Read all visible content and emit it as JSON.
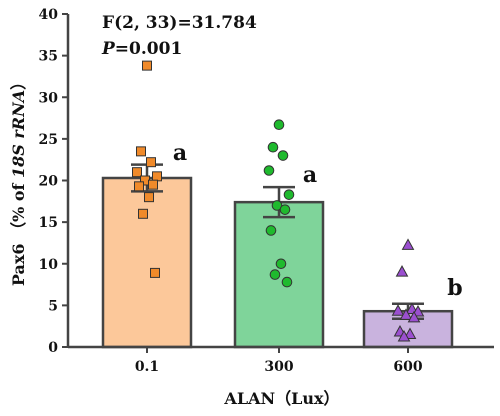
{
  "chart_data": {
    "type": "bar",
    "categories": [
      "0.1",
      "300",
      "600"
    ],
    "values": [
      20.3,
      17.4,
      4.3
    ],
    "errors": [
      1.6,
      1.8,
      0.9
    ],
    "significance": [
      "a",
      "a",
      "b"
    ],
    "points": [
      [
        33.8,
        23.5,
        22.2,
        21.0,
        20.5,
        20.0,
        19.5,
        19.3,
        18.0,
        16.0,
        8.9
      ],
      [
        26.7,
        24.0,
        23.0,
        21.2,
        18.3,
        17.0,
        16.5,
        14.0,
        10.0,
        8.7,
        7.8
      ],
      [
        12.2,
        9.0,
        4.5,
        4.3,
        4.2,
        3.8,
        3.5,
        1.8,
        1.5,
        1.2
      ]
    ],
    "colors": {
      "fills": [
        "#fcc89a",
        "#7fd49a",
        "#c9b3de"
      ],
      "markers": [
        "#f08a2a",
        "#1fba2e",
        "#9b4fd0"
      ],
      "axis": "#444444"
    },
    "markers": [
      "square",
      "circle",
      "triangle"
    ],
    "ylim": [
      0,
      40
    ],
    "yticks": [
      "0",
      "5",
      "10",
      "15",
      "20",
      "25",
      "30",
      "35",
      "40"
    ],
    "ylabel": {
      "prefix": "Pax6 （% of ",
      "italic": "18S rRNA",
      "suffix": "）"
    },
    "xlabel": "ALAN（Lux）",
    "stat_line1": "F(2, 33)=31.784",
    "stat_p_italic": "P",
    "stat_p_rest": "=0.001"
  }
}
